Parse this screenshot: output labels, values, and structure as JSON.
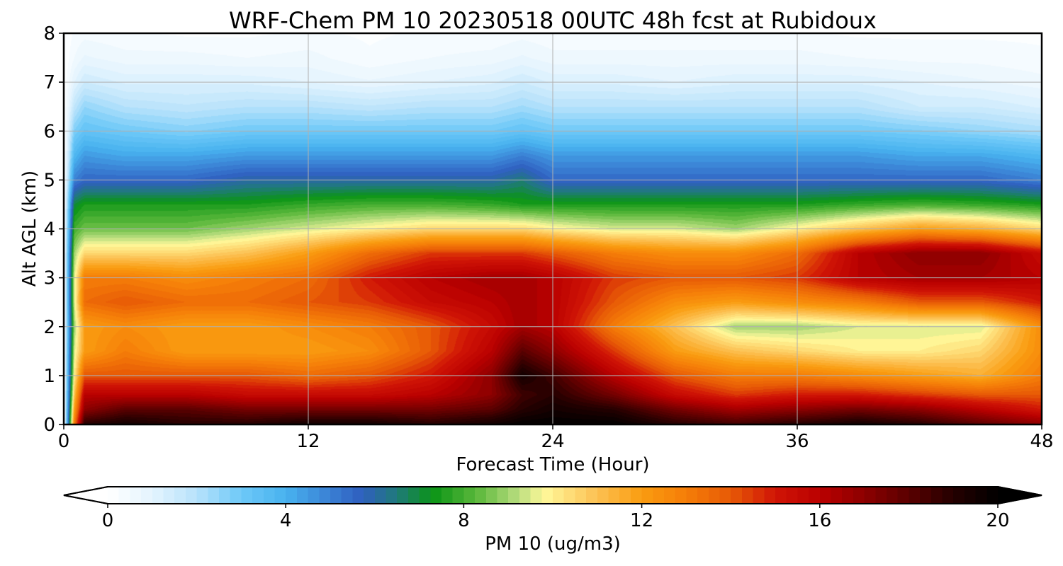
{
  "chart_data": {
    "type": "heatmap",
    "title": "WRF-Chem PM 10  20230518 00UTC 48h fcst at Rubidoux",
    "xlabel": "Forecast Time (Hour)",
    "ylabel": "Alt AGL (km)",
    "xlim": [
      0,
      48
    ],
    "ylim": [
      0,
      8
    ],
    "xticks": [
      "0",
      "12",
      "24",
      "36",
      "48"
    ],
    "yticks": [
      "0",
      "1",
      "2",
      "3",
      "4",
      "5",
      "6",
      "7",
      "8"
    ],
    "grid": true,
    "x_hours": [
      0,
      0.5,
      1,
      3,
      6,
      9,
      12,
      15,
      18,
      21,
      22.5,
      24,
      27,
      30,
      33,
      36,
      39,
      42,
      45,
      48
    ],
    "z_km": [
      0,
      0.3,
      0.6,
      1,
      1.5,
      2,
      2.5,
      3,
      3.5,
      4,
      4.5,
      5,
      5.5,
      6,
      6.5,
      7,
      7.5,
      8
    ],
    "pm10_ugm3": [
      [
        0,
        13,
        19,
        19.5,
        19,
        19,
        19.5,
        19.5,
        19,
        19.5,
        20,
        20,
        20,
        19,
        18.5,
        19,
        19.5,
        19,
        18,
        17
      ],
      [
        0,
        12,
        17,
        18,
        18,
        17.5,
        17.5,
        17.5,
        17.5,
        18,
        19,
        19.5,
        19,
        17.5,
        16.5,
        17,
        17.5,
        17,
        16,
        15
      ],
      [
        0,
        11,
        16,
        16,
        16,
        15.5,
        15.5,
        15.5,
        16,
        17,
        18.5,
        19,
        17.5,
        15.5,
        14.5,
        15,
        15,
        14.5,
        14,
        14
      ],
      [
        0,
        10,
        14,
        14,
        14,
        14,
        13.5,
        14,
        15,
        17,
        19.5,
        18.5,
        16,
        14,
        13,
        13,
        12.5,
        12,
        11.5,
        13
      ],
      [
        0,
        9.5,
        12,
        13,
        12,
        12,
        12,
        12.5,
        14,
        16,
        18,
        17,
        14.5,
        12,
        11,
        10.5,
        10,
        10,
        10.5,
        12.5
      ],
      [
        0,
        9,
        12,
        12.5,
        12,
        12,
        12.5,
        13,
        14,
        15.5,
        16.5,
        16,
        13,
        11,
        9,
        9,
        9.5,
        9.5,
        9.5,
        12.5
      ],
      [
        0,
        9.5,
        13.5,
        14,
        13.5,
        13.5,
        14,
        14.5,
        15.5,
        16,
        16.5,
        16,
        14,
        12.5,
        12,
        12.5,
        13,
        14,
        14,
        15
      ],
      [
        0,
        9.5,
        13,
        13,
        12.5,
        13,
        13.5,
        15,
        16,
        16.5,
        16.5,
        16,
        14.5,
        14,
        14,
        14.5,
        16,
        16.5,
        16.5,
        16
      ],
      [
        0,
        9,
        10.5,
        10.5,
        10.5,
        11,
        12,
        13.5,
        14.5,
        14.5,
        14.5,
        14,
        13,
        12.5,
        12.5,
        13.5,
        16,
        17,
        17,
        15.5
      ],
      [
        0,
        8,
        8.5,
        8.5,
        8.5,
        9,
        9.5,
        10,
        10.5,
        10.5,
        10.5,
        10,
        9.5,
        9.5,
        9,
        10,
        11,
        12,
        11.5,
        10.5
      ],
      [
        0,
        7,
        7.5,
        7.5,
        7.5,
        7.5,
        7.8,
        8,
        8,
        7.8,
        7.5,
        7.5,
        7.5,
        7.5,
        7.5,
        7.5,
        7.8,
        8,
        7.8,
        7.5
      ],
      [
        0,
        5,
        5.5,
        5.5,
        5.5,
        6,
        6,
        6,
        6,
        6,
        6.5,
        5.5,
        5.5,
        5.5,
        5.5,
        5.5,
        5.5,
        5.5,
        5.5,
        5
      ],
      [
        0,
        3.8,
        4.5,
        4.2,
        4.2,
        4.5,
        4.5,
        4.5,
        4.5,
        4.5,
        5,
        4.5,
        4.5,
        4.5,
        4.5,
        4.5,
        4.5,
        4.2,
        4.2,
        3.8
      ],
      [
        0,
        2.8,
        3.3,
        3,
        2.7,
        3,
        3,
        3,
        3,
        3,
        3.3,
        3,
        3,
        3,
        3,
        3,
        3,
        2.8,
        2.5,
        2.2
      ],
      [
        0,
        1.8,
        2.5,
        2,
        1.8,
        2,
        2,
        1.8,
        2,
        2,
        2.3,
        2,
        2,
        2,
        2,
        2,
        2,
        1.5,
        1.5,
        1.2
      ],
      [
        0,
        1,
        1.5,
        1.2,
        1.2,
        1.2,
        1,
        0.8,
        1,
        1.2,
        1.5,
        1.2,
        1.2,
        1,
        1.2,
        1.2,
        1.2,
        1,
        0.8,
        0.6
      ],
      [
        0,
        0.5,
        0.8,
        0.6,
        0.6,
        0.5,
        0.6,
        0.3,
        0.5,
        0.6,
        0.8,
        0.6,
        0.6,
        0.6,
        0.6,
        0.6,
        0.5,
        0.4,
        0.4,
        0.3
      ],
      [
        0,
        0.3,
        0.4,
        0.3,
        0.2,
        0.2,
        0.3,
        0.2,
        0.3,
        0.3,
        0.4,
        0.3,
        0.3,
        0.3,
        0.3,
        0.3,
        0.2,
        0.2,
        0.2,
        0.2
      ]
    ],
    "colorbar": {
      "label": "PM 10  (ug/m3)",
      "ticks": [
        "0",
        "4",
        "8",
        "12",
        "16",
        "20"
      ],
      "range": [
        0,
        20
      ],
      "extend": "both",
      "stops": [
        {
          "v": 0,
          "color": "#ffffff"
        },
        {
          "v": 1,
          "color": "#e4f4fe"
        },
        {
          "v": 2,
          "color": "#b7e2fb"
        },
        {
          "v": 3,
          "color": "#6ec9f8"
        },
        {
          "v": 4,
          "color": "#48b2ef"
        },
        {
          "v": 5,
          "color": "#3a80d4"
        },
        {
          "v": 5.7,
          "color": "#2f5fbf"
        },
        {
          "v": 6.5,
          "color": "#1f7a7a"
        },
        {
          "v": 7.3,
          "color": "#0b9416"
        },
        {
          "v": 8.3,
          "color": "#5cb83c"
        },
        {
          "v": 9.2,
          "color": "#b5dc7c"
        },
        {
          "v": 9.8,
          "color": "#fff89a"
        },
        {
          "v": 11,
          "color": "#fcc052"
        },
        {
          "v": 12,
          "color": "#fa9c10"
        },
        {
          "v": 13,
          "color": "#f57d08"
        },
        {
          "v": 14,
          "color": "#e75a06"
        },
        {
          "v": 15,
          "color": "#d01406"
        },
        {
          "v": 16,
          "color": "#ba0000"
        },
        {
          "v": 17,
          "color": "#8c0000"
        },
        {
          "v": 18,
          "color": "#5a0000"
        },
        {
          "v": 19,
          "color": "#240000"
        },
        {
          "v": 20,
          "color": "#000000"
        }
      ]
    }
  }
}
